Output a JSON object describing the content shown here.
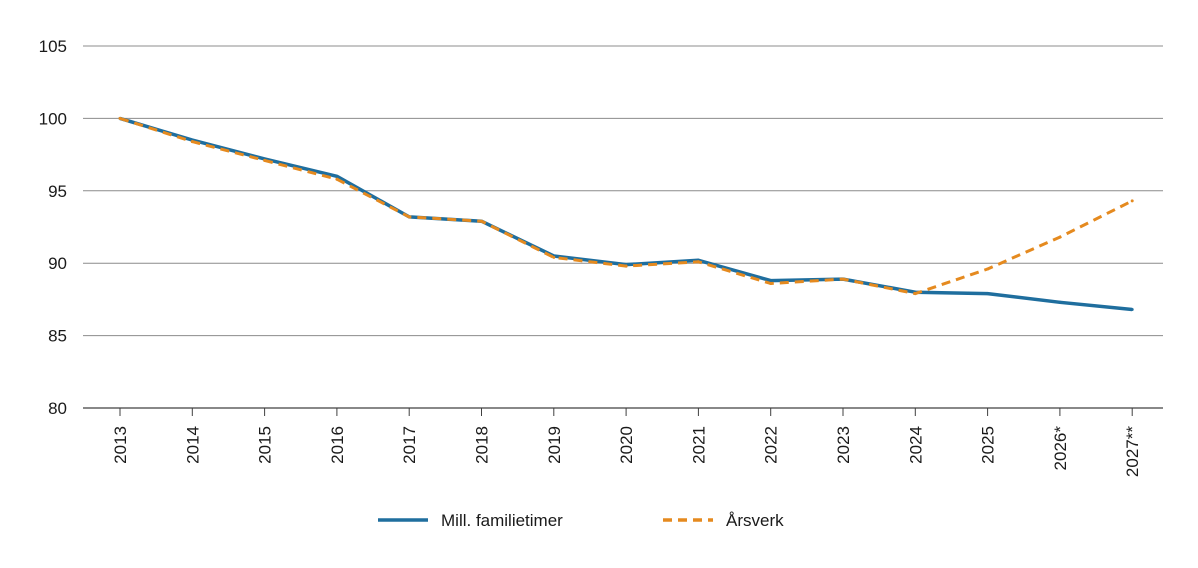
{
  "chart_data": {
    "type": "line",
    "categories": [
      "2013",
      "2014",
      "2015",
      "2016",
      "2017",
      "2018",
      "2019",
      "2020",
      "2021",
      "2022",
      "2023",
      "2024",
      "2025",
      "2026*",
      "2027**"
    ],
    "ylim": [
      80,
      105
    ],
    "yticks": [
      80,
      85,
      90,
      95,
      100,
      105
    ],
    "grid": true,
    "legend_position": "bottom",
    "series": [
      {
        "name": "Mill. familietimer",
        "color": "#1f6e9e",
        "style": "solid",
        "values": [
          100,
          98.5,
          97.2,
          96.0,
          93.2,
          92.9,
          90.5,
          89.9,
          90.2,
          88.8,
          88.9,
          88.0,
          87.9,
          87.3,
          86.8
        ]
      },
      {
        "name": "Årsverk",
        "color": "#e58a1f",
        "style": "dashed",
        "values": [
          100,
          98.4,
          97.1,
          95.8,
          93.2,
          92.9,
          90.4,
          89.8,
          90.1,
          88.6,
          88.9,
          87.9,
          89.6,
          91.8,
          94.3
        ]
      }
    ]
  }
}
